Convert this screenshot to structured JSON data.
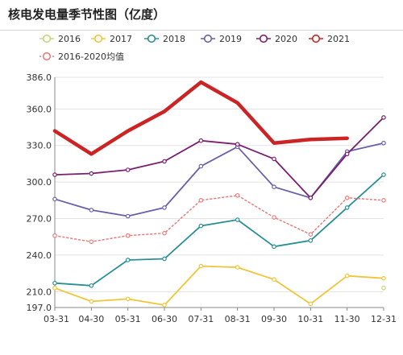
{
  "title": "核电发电量季节性图（亿度）",
  "chart_data": {
    "type": "line",
    "x": [
      "03-31",
      "04-30",
      "05-31",
      "06-30",
      "07-31",
      "08-31",
      "09-30",
      "10-31",
      "11-30",
      "12-31"
    ],
    "y_ticks": [
      "197.0",
      "210.0",
      "240.0",
      "270.0",
      "300.0",
      "330.0",
      "360.0",
      "386.0"
    ],
    "ylim": [
      197,
      386
    ],
    "grid": true,
    "legend_position": "top-left",
    "series": [
      {
        "name": "2016",
        "color": "#c5d57a",
        "dash": false,
        "width": 1.5,
        "values": [
          null,
          null,
          null,
          null,
          null,
          null,
          null,
          null,
          null,
          213
        ]
      },
      {
        "name": "2017",
        "color": "#f0c53a",
        "dash": false,
        "width": 1.8,
        "values": [
          213,
          202,
          204,
          199,
          231,
          230,
          220,
          200,
          223,
          221
        ]
      },
      {
        "name": "2018",
        "color": "#2a8f96",
        "dash": false,
        "width": 1.8,
        "values": [
          217,
          215,
          236,
          237,
          264,
          269,
          247,
          252,
          279,
          306
        ]
      },
      {
        "name": "2019",
        "color": "#6b5ea8",
        "dash": false,
        "width": 1.8,
        "values": [
          286,
          277,
          272,
          279,
          313,
          329,
          296,
          287,
          325,
          332
        ]
      },
      {
        "name": "2020",
        "color": "#7a1f70",
        "dash": false,
        "width": 1.8,
        "values": [
          306,
          307,
          310,
          317,
          334,
          331,
          319,
          287,
          323,
          353
        ]
      },
      {
        "name": "2021",
        "color": "#cc2424",
        "dash": false,
        "width": 4.5,
        "values": [
          342,
          323,
          342,
          358,
          382,
          365,
          332,
          335,
          336,
          null
        ]
      },
      {
        "name": "2016-2020均值",
        "color": "#ee7b7b",
        "dash": true,
        "width": 1.5,
        "values": [
          256,
          251,
          256,
          258,
          285,
          289,
          271,
          257,
          287,
          285
        ]
      }
    ]
  }
}
